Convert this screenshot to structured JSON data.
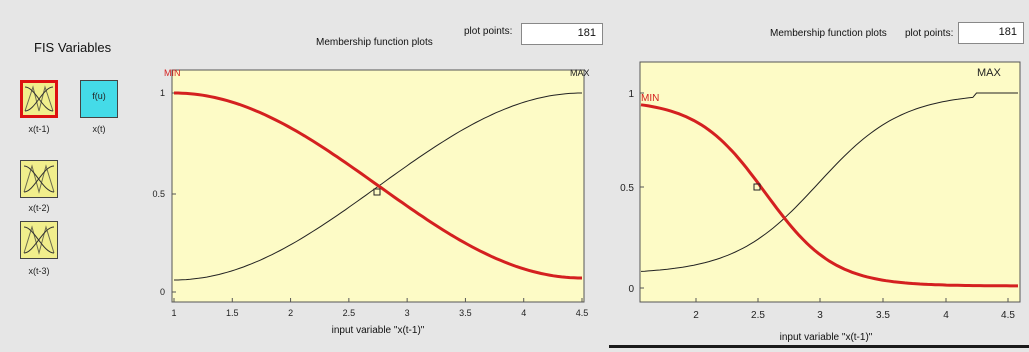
{
  "left": {
    "fis_variables_title": "FIS Variables",
    "variables": [
      {
        "label": "x(t-1)",
        "selected": true
      },
      {
        "label": "x(t-2)",
        "selected": false
      },
      {
        "label": "x(t-3)",
        "selected": false
      }
    ],
    "output_variable": {
      "label": "x(t)",
      "glyph": "f(u)"
    },
    "plot_title": "Membership function plots",
    "plot_points_label": "plot points:",
    "plot_points_value": "181",
    "plot": {
      "mf_labels": [
        "MIN",
        "MAX"
      ],
      "xlabel": "input variable \"x(t-1)\"",
      "x_ticks": [
        "1",
        "1.5",
        "2",
        "2.5",
        "3",
        "3.5",
        "4",
        "4.5"
      ],
      "y_ticks": [
        "0",
        "0.5",
        "1"
      ]
    }
  },
  "right": {
    "plot_title": "Membership function plots",
    "plot_points_label": "plot points:",
    "plot_points_value": "181",
    "plot": {
      "mf_labels": [
        "MIN",
        "MAX"
      ],
      "xlabel": "input variable \"x(t-1)\"",
      "x_ticks": [
        "2",
        "2.5",
        "3",
        "3.5",
        "4",
        "4.5"
      ],
      "y_ticks": [
        "0",
        "0.5",
        "1"
      ]
    }
  },
  "colors": {
    "plot_bg": "#fdfbc6",
    "selected_curve": "#d42020",
    "other_curve": "#222222",
    "selected_border": "#dd1111",
    "input_var_fill": "#f1ee8c",
    "output_var_fill": "#44dbe8"
  }
}
